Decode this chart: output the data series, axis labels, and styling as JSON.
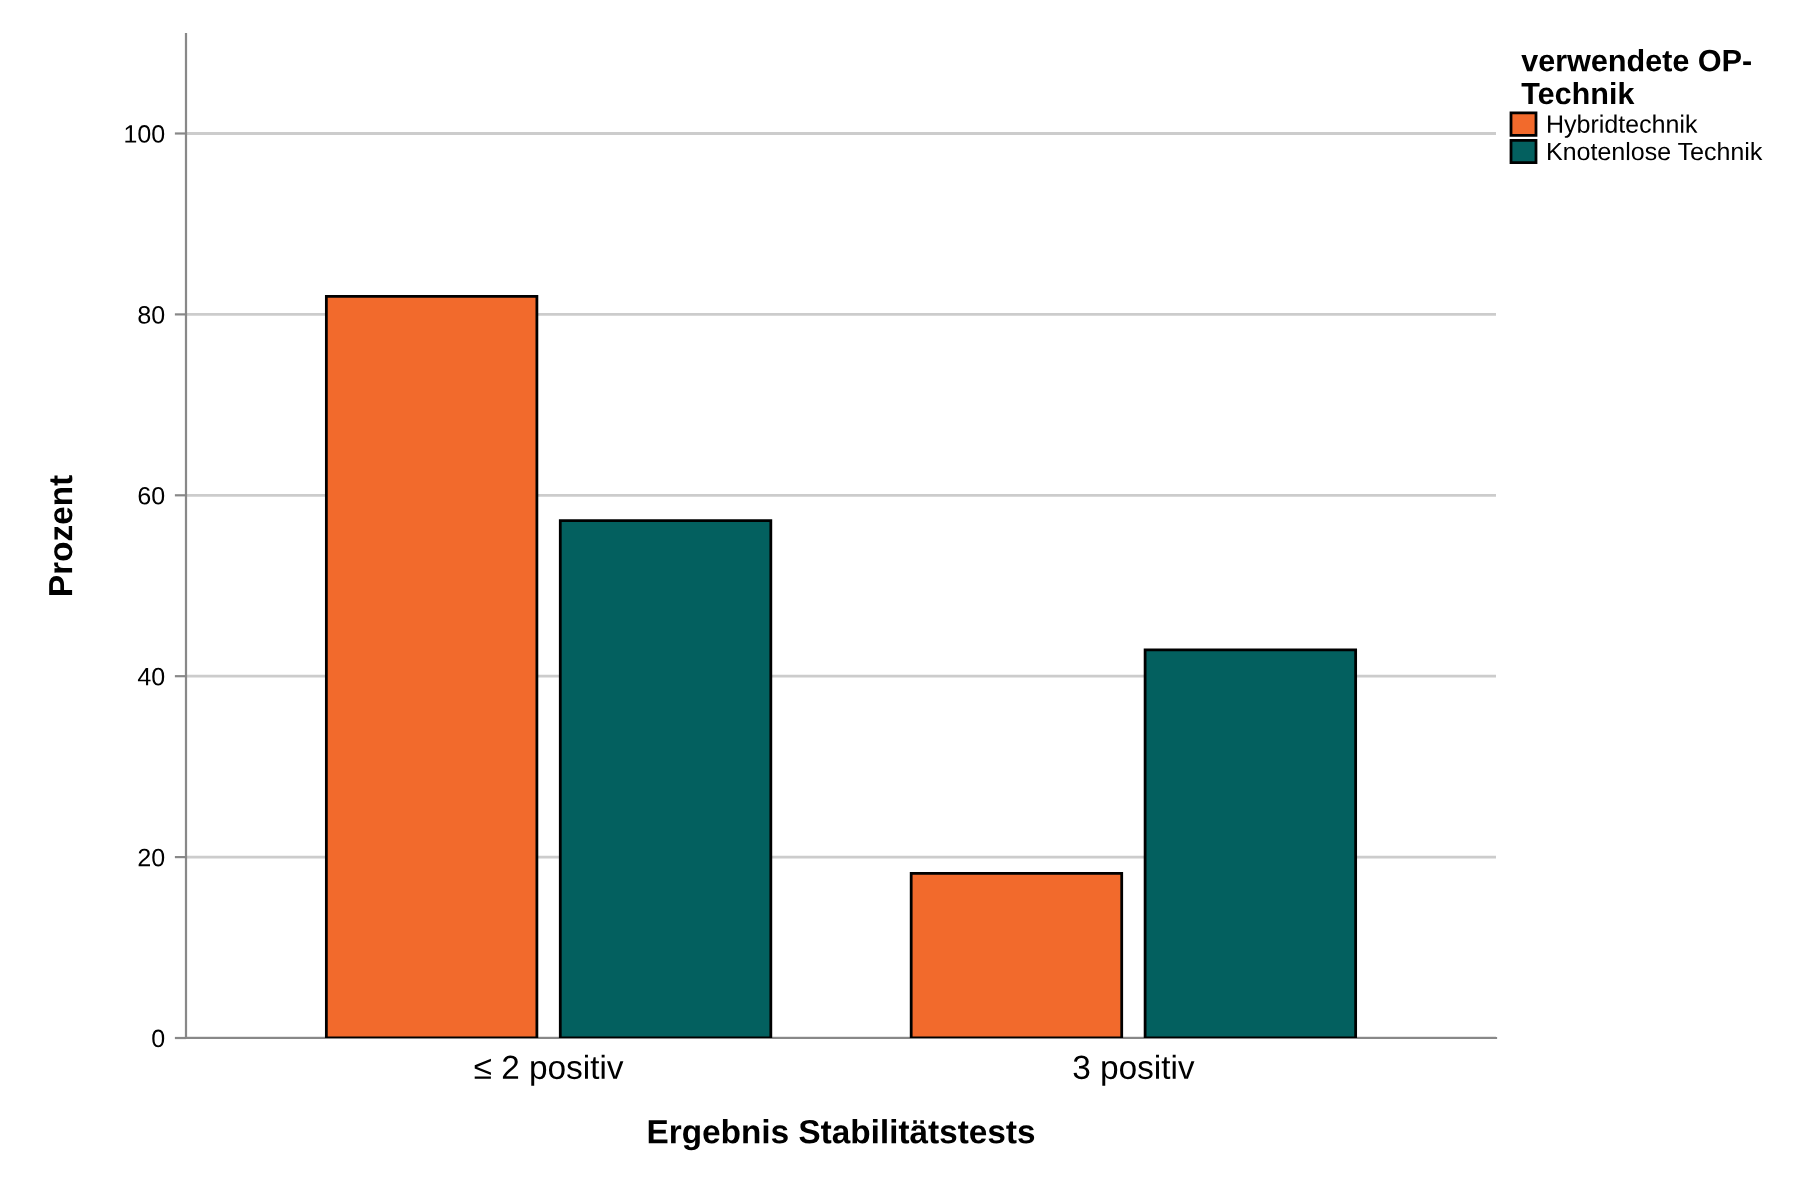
{
  "chart_data": {
    "type": "bar",
    "xlabel": "Ergebnis Stabilitätstests",
    "ylabel": "Prozent",
    "legend_title": "verwendete OP-\nTechnik",
    "categories": [
      "≤ 2 positiv",
      "3 positiv"
    ],
    "series": [
      {
        "name": "Hybridtechnik",
        "color": "#f26a2c",
        "values": [
          82.0,
          18.2
        ]
      },
      {
        "name": "Knotenlose Technik",
        "color": "#03605f",
        "values": [
          57.2,
          42.9
        ]
      }
    ],
    "ylim": [
      0,
      111
    ],
    "yticks": [
      0,
      20,
      40,
      60,
      80,
      100
    ],
    "grid": "y",
    "legend": "top right"
  }
}
